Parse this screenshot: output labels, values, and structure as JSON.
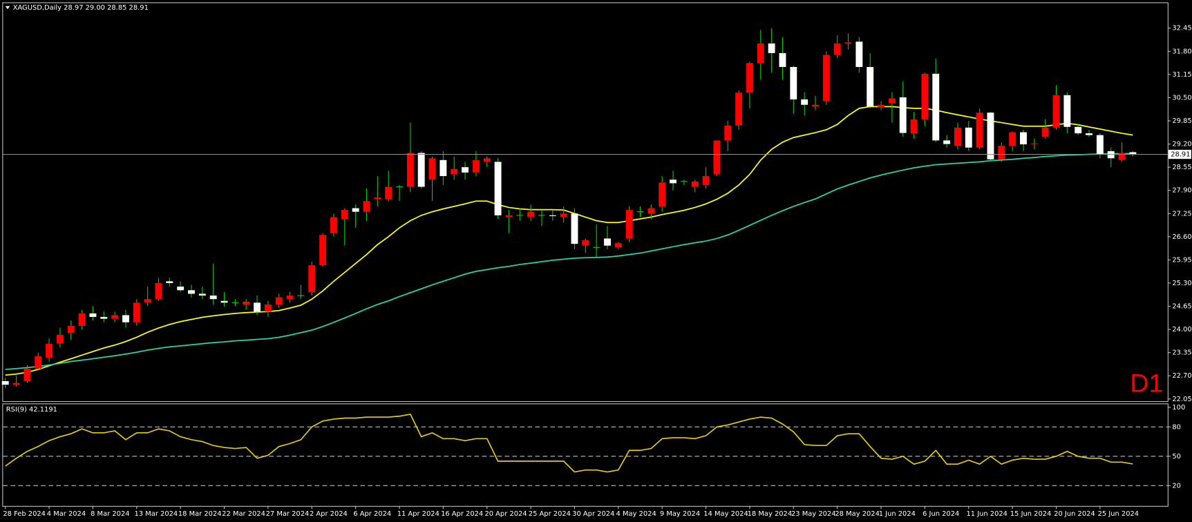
{
  "chart_data": [
    {
      "type": "candlestick",
      "title": "XAGUSD,Daily  28.97 29.00 28.85 28.91",
      "timeframe_label": "D1",
      "categories": [
        "28 Feb 2024",
        null,
        null,
        null,
        "4 Mar 2024",
        null,
        null,
        null,
        "8 Mar 2024",
        null,
        null,
        null,
        "13 Mar 2024",
        null,
        null,
        null,
        "18 Mar 2024",
        null,
        null,
        null,
        "22 Mar 2024",
        null,
        null,
        null,
        "27 Mar 2024",
        null,
        null,
        null,
        "2 Apr 2024",
        null,
        null,
        null,
        "6 Apr 2024",
        null,
        null,
        null,
        "11 Apr 2024",
        null,
        null,
        null,
        "16 Apr 2024",
        null,
        null,
        null,
        "20 Apr 2024",
        null,
        null,
        null,
        "25 Apr 2024",
        null,
        null,
        null,
        "30 Apr 2024",
        null,
        null,
        null,
        "4 May 2024",
        null,
        null,
        null,
        "9 May 2024",
        null,
        null,
        null,
        "14 May 2024",
        null,
        null,
        null,
        "18 May 2024",
        null,
        null,
        null,
        "23 May 2024",
        null,
        null,
        null,
        "28 May 2024",
        null,
        null,
        null,
        "1 Jun 2024",
        null,
        null,
        null,
        "6 Jun 2024",
        null,
        null,
        null,
        "11 Jun 2024",
        null,
        null,
        null,
        "15 Jun 2024",
        null,
        null,
        null,
        "20 Jun 2024",
        null,
        null,
        null,
        "25 Jun 2024",
        null,
        null,
        null
      ],
      "open": [
        22.55,
        22.45,
        22.55,
        22.9,
        23.2,
        23.6,
        23.9,
        24.1,
        24.45,
        24.35,
        24.3,
        24.4,
        24.2,
        24.75,
        24.85,
        25.35,
        25.2,
        25.1,
        25,
        24.95,
        24.8,
        24.75,
        24.7,
        24.75,
        24.5,
        24.7,
        24.85,
        24.95,
        25.05,
        25.8,
        26.7,
        27.1,
        27.4,
        27.3,
        27.65,
        27.65,
        28,
        28,
        28.95,
        28.2,
        28.75,
        28.35,
        28.55,
        28.4,
        28.7,
        28.7,
        27.15,
        27.2,
        27.15,
        27.2,
        27.2,
        27.15,
        27.25,
        26.35,
        26.3,
        26.55,
        26.3,
        26.55,
        27.3,
        27.25,
        27.45,
        28.2,
        28.15,
        28,
        28.05,
        28.35,
        29.3,
        29.72,
        30.64,
        31.47,
        32.02,
        31.75,
        31.36,
        30.45,
        30.25,
        30.4,
        31.7,
        32.02,
        32.07,
        31.36,
        30.22,
        30.35,
        30.51,
        29.5,
        29.89,
        31.17,
        29.3,
        29.15,
        29.66,
        29.1,
        30.08,
        28.77,
        29.15,
        29.53,
        29.2,
        29.4,
        29.66,
        30.57,
        29.68,
        29.5,
        29.45,
        29,
        28.75,
        28.97
      ],
      "high": [
        22.65,
        22.7,
        23,
        23.35,
        23.75,
        24.05,
        24.25,
        24.55,
        24.65,
        24.5,
        24.5,
        24.55,
        24.85,
        25.2,
        25.45,
        25.45,
        25.35,
        25.25,
        25.2,
        25.85,
        25.05,
        24.85,
        24.85,
        24.95,
        24.8,
        25,
        25.05,
        25.25,
        25.9,
        26.7,
        27.25,
        27.4,
        27.5,
        27.95,
        28.3,
        28.45,
        28.05,
        29.8,
        29,
        28.85,
        29,
        28.85,
        28.7,
        29,
        28.85,
        28.8,
        27.35,
        27.4,
        27.5,
        27.35,
        27.35,
        27.45,
        27.4,
        26.55,
        26.95,
        26.9,
        26.45,
        27.45,
        27.45,
        27.5,
        28.3,
        28.45,
        28.2,
        28.2,
        28.55,
        29.3,
        29.85,
        30.7,
        31.5,
        32.4,
        32.45,
        32.2,
        31.4,
        30.65,
        30.55,
        31.8,
        32.25,
        32.3,
        32.2,
        31.75,
        30.4,
        30.65,
        30.95,
        30.1,
        31.2,
        31.6,
        29.45,
        29.8,
        29.85,
        30.2,
        30.1,
        29.25,
        29.55,
        29.6,
        29.35,
        29.9,
        30.85,
        30.65,
        29.75,
        29.6,
        29.5,
        29.1,
        29.25,
        29
      ],
      "low": [
        22.35,
        22.4,
        22.5,
        22.85,
        23.1,
        23.5,
        23.7,
        24,
        24.25,
        24.2,
        24.2,
        24.05,
        24.1,
        24.65,
        24.8,
        25.2,
        25.05,
        24.9,
        24.85,
        24.7,
        24.65,
        24.65,
        24.55,
        24.4,
        24.35,
        24.6,
        24.75,
        24.85,
        24.95,
        25.75,
        26.6,
        26.35,
        26.85,
        27.05,
        27.45,
        27.6,
        27.6,
        27.85,
        27.95,
        27.6,
        28.05,
        28.2,
        28.2,
        28.3,
        28.55,
        27.1,
        26.7,
        27.05,
        27.05,
        26.9,
        27.05,
        27,
        26.25,
        26.15,
        26,
        26.25,
        26.25,
        26.45,
        27.15,
        27.1,
        27.3,
        27.9,
        28.05,
        27.85,
        27.95,
        28.3,
        29,
        29.6,
        30.2,
        31,
        31.2,
        31,
        30.05,
        30,
        30.15,
        30.3,
        31.6,
        31.85,
        31.2,
        30.2,
        30.15,
        29.8,
        29.4,
        29.35,
        29.7,
        29.25,
        29.1,
        29.05,
        29,
        29.05,
        28.7,
        28.7,
        29,
        29,
        29.05,
        29.35,
        29.6,
        29.5,
        29.45,
        29.4,
        28.8,
        28.55,
        28.7,
        28.85
      ],
      "close": [
        22.45,
        22.5,
        22.9,
        23.25,
        23.6,
        23.85,
        24.1,
        24.45,
        24.35,
        24.3,
        24.4,
        24.2,
        24.75,
        24.85,
        25.3,
        25.3,
        25.1,
        25,
        24.95,
        24.85,
        24.75,
        24.75,
        24.78,
        24.5,
        24.7,
        24.9,
        24.95,
        24.95,
        25.8,
        26.65,
        27.15,
        27.35,
        27.3,
        27.6,
        27.7,
        28,
        28,
        28.95,
        28,
        28.8,
        28.3,
        28.5,
        28.4,
        28.75,
        28.8,
        27.2,
        27.2,
        27.2,
        27.3,
        27.2,
        27.18,
        27.25,
        26.4,
        26.5,
        26.3,
        26.35,
        26.42,
        27.35,
        27.3,
        27.4,
        28.12,
        28.1,
        28.15,
        28.15,
        28.3,
        29.3,
        29.72,
        30.64,
        31.47,
        32.02,
        31.75,
        31.36,
        30.45,
        30.3,
        30.3,
        31.7,
        32.02,
        32.05,
        31.36,
        30.25,
        30.3,
        30.48,
        29.51,
        29.89,
        31.17,
        29.3,
        29.2,
        29.66,
        29.1,
        30.08,
        28.77,
        29.15,
        29.53,
        29.19,
        29.22,
        29.66,
        30.57,
        29.68,
        29.5,
        29.45,
        28.91,
        28.8,
        28.95,
        28.91
      ],
      "up_color": "#ff0000",
      "down_color": "#ffffff",
      "wick_color": "#00d000",
      "price_line_color": "#8c8c8c",
      "moving_averages": [
        {
          "color": "#ffff00",
          "values": [
            22.72,
            22.75,
            22.8,
            22.88,
            22.98,
            23.08,
            23.18,
            23.28,
            23.38,
            23.48,
            23.56,
            23.66,
            23.78,
            23.92,
            24.04,
            24.14,
            24.22,
            24.28,
            24.34,
            24.38,
            24.42,
            24.45,
            24.47,
            24.49,
            24.5,
            24.53,
            24.6,
            24.68,
            24.85,
            25.08,
            25.35,
            25.6,
            25.85,
            26.1,
            26.38,
            26.6,
            26.85,
            27.05,
            27.2,
            27.3,
            27.38,
            27.45,
            27.52,
            27.6,
            27.6,
            27.5,
            27.42,
            27.38,
            27.36,
            27.36,
            27.36,
            27.35,
            27.25,
            27.15,
            27.05,
            27,
            27,
            27.05,
            27.1,
            27.15,
            27.22,
            27.28,
            27.34,
            27.42,
            27.52,
            27.65,
            27.82,
            28.05,
            28.35,
            28.75,
            29.05,
            29.25,
            29.38,
            29.45,
            29.52,
            29.6,
            29.75,
            30,
            30.2,
            30.25,
            30.25,
            30.25,
            30.22,
            30.2,
            30.2,
            30.15,
            30.08,
            30.02,
            29.96,
            29.9,
            29.85,
            29.8,
            29.75,
            29.7,
            29.7,
            29.7,
            29.74,
            29.78,
            29.74,
            29.68,
            29.62,
            29.56,
            29.5,
            29.45
          ]
        },
        {
          "color": "#20d8b0",
          "values": [
            22.88,
            22.9,
            22.93,
            22.96,
            23,
            23.05,
            23.1,
            23.14,
            23.18,
            23.22,
            23.26,
            23.31,
            23.36,
            23.42,
            23.47,
            23.51,
            23.54,
            23.57,
            23.6,
            23.63,
            23.65,
            23.68,
            23.7,
            23.72,
            23.74,
            23.78,
            23.84,
            23.91,
            23.98,
            24.08,
            24.2,
            24.32,
            24.45,
            24.58,
            24.7,
            24.8,
            24.92,
            25.03,
            25.14,
            25.25,
            25.35,
            25.45,
            25.55,
            25.63,
            25.68,
            25.73,
            25.77,
            25.82,
            25.86,
            25.9,
            25.94,
            25.97,
            26,
            26.01,
            26.02,
            26.03,
            26.06,
            26.1,
            26.14,
            26.2,
            26.26,
            26.32,
            26.38,
            26.43,
            26.48,
            26.55,
            26.65,
            26.78,
            26.92,
            27.06,
            27.2,
            27.33,
            27.45,
            27.56,
            27.66,
            27.8,
            27.94,
            28.05,
            28.15,
            28.25,
            28.33,
            28.4,
            28.47,
            28.53,
            28.58,
            28.62,
            28.64,
            28.66,
            28.68,
            28.7,
            28.73,
            28.75,
            28.77,
            28.8,
            28.82,
            28.85,
            28.87,
            28.89,
            28.9,
            28.91,
            28.92,
            28.93,
            28.93,
            28.93
          ]
        }
      ],
      "ylim": [
        22.01,
        33.13
      ],
      "yticks": [
        32.45,
        {
          "value": 31.8,
          "label": "31.80"
        },
        31.15,
        {
          "value": 30.5,
          "label": "30.50"
        },
        29.85,
        {
          "value": 29.2,
          "label": "29.20"
        },
        28.55,
        {
          "value": 27.9,
          "label": "27.90"
        },
        27.25,
        {
          "value": 26.6,
          "label": "26.60"
        },
        25.95,
        {
          "value": 25.3,
          "label": "25.30"
        },
        24.65,
        {
          "value": 24,
          "label": "24.00"
        },
        23.35,
        {
          "value": 22.7,
          "label": "22.70"
        },
        22.05
      ]
    },
    {
      "type": "line",
      "title": "RSI(9) 42.1191",
      "color": "#e8d000",
      "values": [
        40,
        48,
        55,
        60,
        66,
        70,
        73,
        78,
        74,
        74,
        76,
        67,
        74,
        74,
        78,
        76,
        70,
        67,
        65,
        61,
        59,
        58,
        59,
        48,
        51,
        60,
        63,
        67,
        80,
        86,
        88,
        89,
        89,
        90,
        90,
        90,
        91,
        93,
        70,
        74,
        68,
        68,
        66,
        68,
        68,
        45,
        45,
        45,
        45,
        45,
        45,
        45,
        34,
        36,
        36,
        34,
        36,
        56,
        56,
        58,
        68,
        69,
        69,
        68,
        71,
        80,
        82,
        85,
        88,
        90,
        89,
        83,
        75,
        62,
        61,
        61,
        71,
        73,
        73,
        60,
        48,
        47,
        50,
        42,
        45,
        56,
        42,
        42,
        46,
        42,
        50,
        42,
        46,
        48,
        47,
        47,
        50,
        55,
        50,
        48,
        48,
        44,
        44,
        42.1191
      ],
      "ylim": [
        0,
        104
      ],
      "yticks": [
        100,
        80,
        50,
        20
      ],
      "levels": [
        80,
        50,
        20
      ]
    }
  ]
}
